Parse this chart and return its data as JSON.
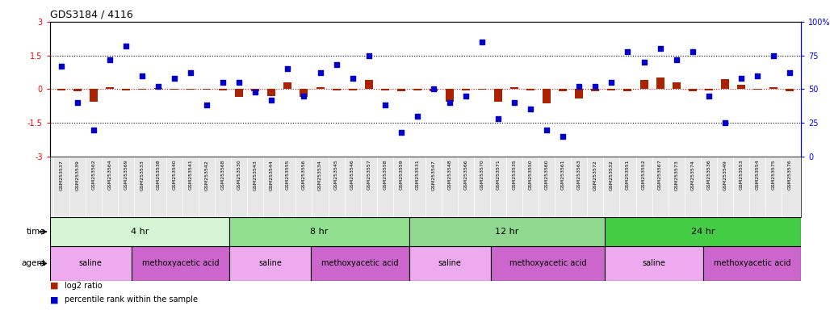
{
  "title": "GDS3184 / 4116",
  "samples": [
    "GSM253537",
    "GSM253539",
    "GSM253562",
    "GSM253564",
    "GSM253569",
    "GSM253533",
    "GSM253538",
    "GSM253540",
    "GSM253541",
    "GSM253542",
    "GSM253568",
    "GSM253530",
    "GSM253543",
    "GSM253544",
    "GSM253555",
    "GSM253556",
    "GSM253534",
    "GSM253545",
    "GSM253546",
    "GSM253557",
    "GSM253558",
    "GSM253559",
    "GSM253531",
    "GSM253547",
    "GSM253548",
    "GSM253566",
    "GSM253570",
    "GSM253571",
    "GSM253535",
    "GSM253550",
    "GSM253560",
    "GSM253561",
    "GSM253563",
    "GSM253572",
    "GSM253532",
    "GSM253551",
    "GSM253552",
    "GSM253567",
    "GSM253573",
    "GSM253574",
    "GSM253536",
    "GSM253549",
    "GSM253553",
    "GSM253554",
    "GSM253575",
    "GSM253576"
  ],
  "log2_ratio": [
    -0.05,
    -0.08,
    -0.55,
    0.1,
    -0.05,
    -0.02,
    0.05,
    -0.03,
    -0.02,
    -0.02,
    -0.05,
    -0.35,
    -0.08,
    -0.3,
    0.3,
    -0.35,
    0.08,
    -0.05,
    -0.05,
    0.4,
    -0.05,
    -0.1,
    -0.05,
    -0.08,
    -0.55,
    -0.05,
    -0.03,
    -0.55,
    0.1,
    -0.05,
    -0.65,
    -0.1,
    -0.4,
    -0.1,
    -0.05,
    -0.08,
    0.4,
    0.5,
    0.3,
    -0.1,
    -0.05,
    0.45,
    0.2,
    -0.02,
    0.1,
    -0.08
  ],
  "percentile": [
    67,
    40,
    20,
    72,
    82,
    60,
    52,
    58,
    62,
    38,
    55,
    55,
    48,
    42,
    65,
    45,
    62,
    68,
    58,
    75,
    38,
    18,
    30,
    50,
    40,
    45,
    85,
    28,
    40,
    35,
    20,
    15,
    52,
    52,
    55,
    78,
    70,
    80,
    72,
    78,
    45,
    25,
    58,
    60,
    75,
    62
  ],
  "time_groups": [
    {
      "label": "4 hr",
      "start": 0,
      "end": 11,
      "color": "#d4f5d4"
    },
    {
      "label": "8 hr",
      "start": 11,
      "end": 22,
      "color": "#90e090"
    },
    {
      "label": "12 hr",
      "start": 22,
      "end": 34,
      "color": "#90d890"
    },
    {
      "label": "24 hr",
      "start": 34,
      "end": 46,
      "color": "#44cc44"
    }
  ],
  "agent_groups": [
    {
      "label": "saline",
      "start": 0,
      "end": 5,
      "color": "#eeaaee"
    },
    {
      "label": "methoxyacetic acid",
      "start": 5,
      "end": 11,
      "color": "#cc66cc"
    },
    {
      "label": "saline",
      "start": 11,
      "end": 16,
      "color": "#eeaaee"
    },
    {
      "label": "methoxyacetic acid",
      "start": 16,
      "end": 22,
      "color": "#cc66cc"
    },
    {
      "label": "saline",
      "start": 22,
      "end": 27,
      "color": "#eeaaee"
    },
    {
      "label": "methoxyacetic acid",
      "start": 27,
      "end": 34,
      "color": "#cc66cc"
    },
    {
      "label": "saline",
      "start": 34,
      "end": 40,
      "color": "#eeaaee"
    },
    {
      "label": "methoxyacetic acid",
      "start": 40,
      "end": 46,
      "color": "#cc66cc"
    }
  ],
  "bar_color": "#aa2200",
  "dot_color": "#0000cc",
  "ylim_left": [
    -3,
    3
  ],
  "ylim_right": [
    0,
    100
  ],
  "background_color": "#ffffff",
  "tick_bg_color": "#e8e8e8"
}
